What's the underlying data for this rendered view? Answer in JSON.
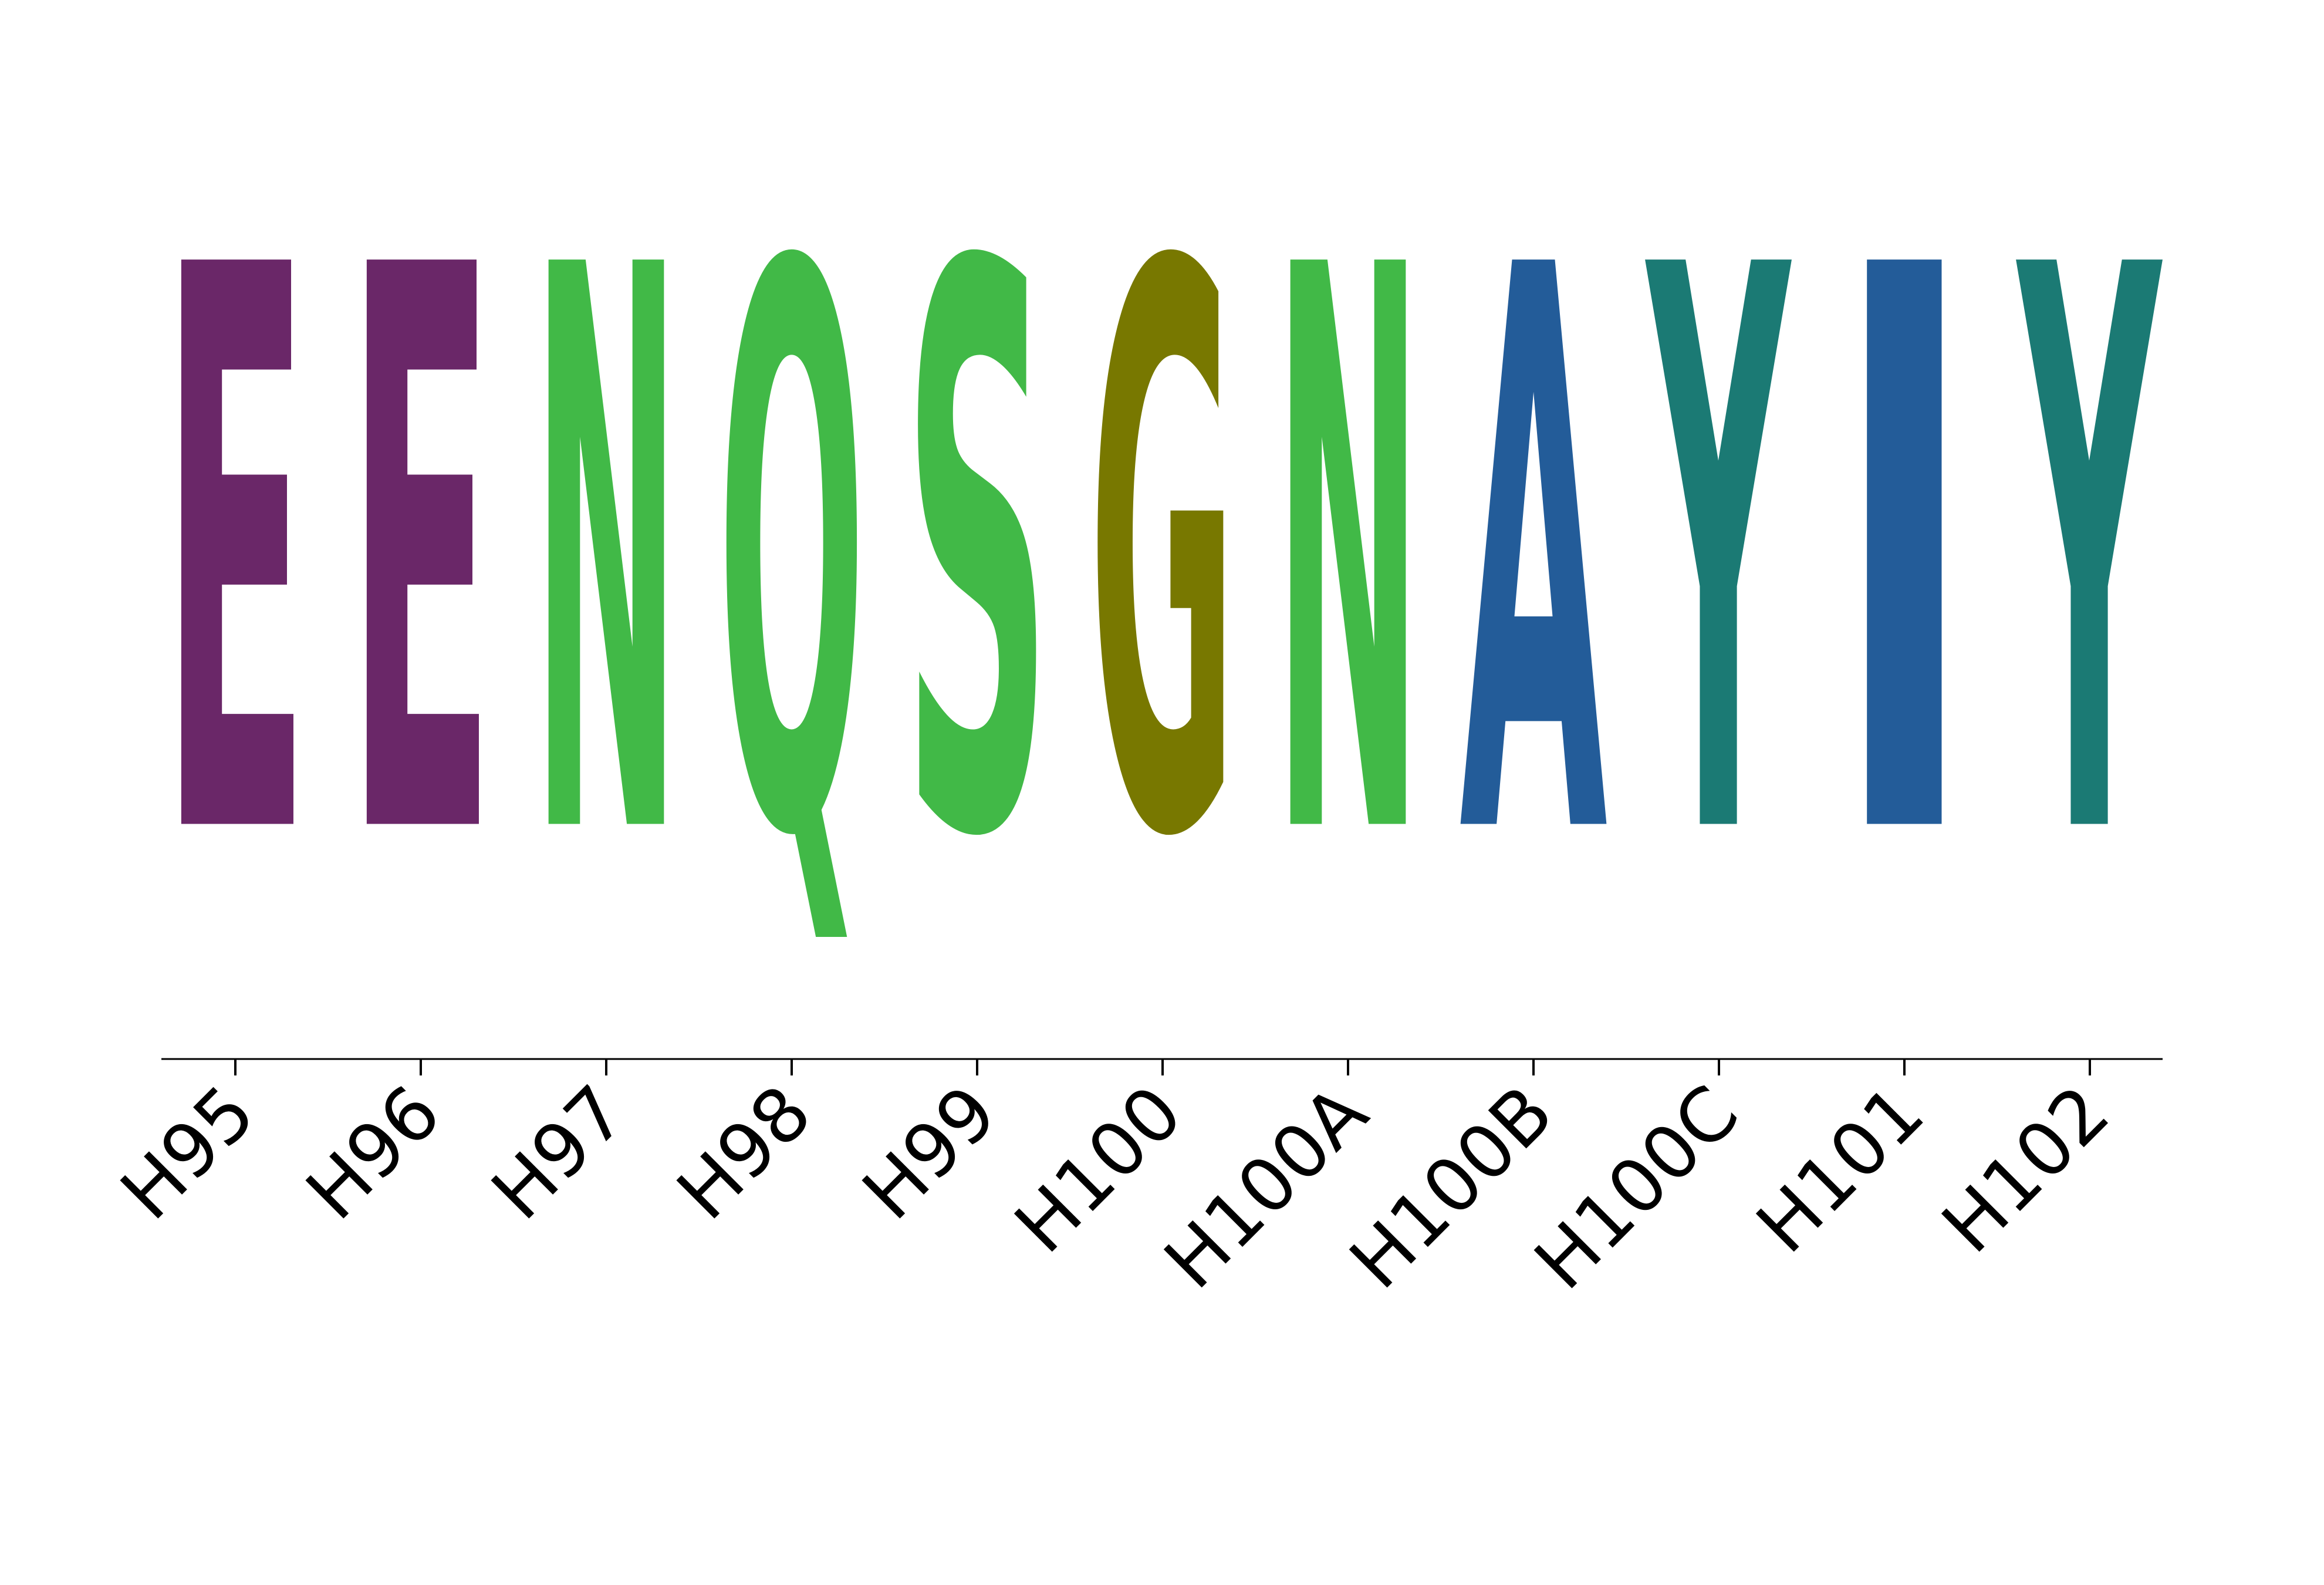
{
  "chart_data": {
    "type": "sequence-logo",
    "title": "",
    "xlabel": "",
    "ylabel": "",
    "positions": [
      {
        "label": "H95",
        "letter": "E",
        "color": "#6a2768",
        "height": 1.0
      },
      {
        "label": "H96",
        "letter": "E",
        "color": "#6a2768",
        "height": 1.0
      },
      {
        "label": "H97",
        "letter": "N",
        "color": "#41b947",
        "height": 1.0
      },
      {
        "label": "H98",
        "letter": "Q",
        "color": "#41b947",
        "height": 1.0
      },
      {
        "label": "H99",
        "letter": "S",
        "color": "#41b947",
        "height": 1.0
      },
      {
        "label": "H100",
        "letter": "G",
        "color": "#787800",
        "height": 1.0
      },
      {
        "label": "H100A",
        "letter": "N",
        "color": "#41b947",
        "height": 1.0
      },
      {
        "label": "H100B",
        "letter": "A",
        "color": "#235c99",
        "height": 1.0
      },
      {
        "label": "H100C",
        "letter": "Y",
        "color": "#1b7a74",
        "height": 1.0
      },
      {
        "label": "H101",
        "letter": "I",
        "color": "#235c99",
        "height": 1.0
      },
      {
        "label": "H102",
        "letter": "Y",
        "color": "#1b7a74",
        "height": 1.0
      }
    ],
    "axis_color": "#000000",
    "grid": false,
    "legend": "none"
  }
}
